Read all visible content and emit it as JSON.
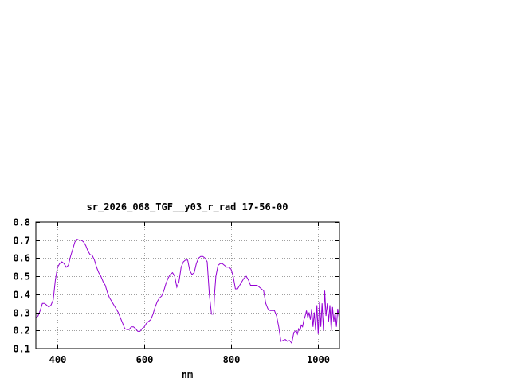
{
  "chart_data": {
    "type": "line",
    "title": "sr_2026_068_TGF__y03_r_rad 17-56-00",
    "xlabel": "nm",
    "ylabel": "",
    "xlim": [
      350,
      1050
    ],
    "ylim": [
      0.1,
      0.8
    ],
    "xticks": [
      400,
      600,
      800,
      1000
    ],
    "yticks": [
      0.1,
      0.2,
      0.3,
      0.4,
      0.5,
      0.6,
      0.7,
      0.8
    ],
    "grid": true,
    "series_color": "#9400d3",
    "x": [
      350,
      355,
      360,
      365,
      370,
      375,
      380,
      385,
      390,
      395,
      400,
      405,
      410,
      415,
      420,
      425,
      430,
      435,
      440,
      445,
      450,
      455,
      460,
      465,
      470,
      475,
      480,
      485,
      490,
      495,
      500,
      505,
      510,
      515,
      520,
      525,
      530,
      535,
      540,
      545,
      550,
      555,
      560,
      565,
      570,
      575,
      580,
      585,
      590,
      595,
      600,
      605,
      610,
      615,
      620,
      625,
      630,
      635,
      640,
      645,
      650,
      655,
      660,
      665,
      670,
      675,
      680,
      685,
      690,
      695,
      700,
      705,
      710,
      715,
      720,
      725,
      730,
      735,
      740,
      745,
      750,
      755,
      760,
      762,
      765,
      770,
      775,
      780,
      785,
      790,
      795,
      800,
      805,
      810,
      815,
      820,
      825,
      830,
      835,
      840,
      845,
      850,
      855,
      860,
      865,
      870,
      875,
      880,
      885,
      890,
      895,
      900,
      905,
      910,
      915,
      920,
      925,
      930,
      935,
      940,
      945,
      950,
      953,
      956,
      959,
      962,
      965,
      968,
      971,
      974,
      977,
      980,
      983,
      986,
      989,
      992,
      995,
      998,
      1001,
      1004,
      1007,
      1010,
      1013,
      1016,
      1019,
      1022,
      1025,
      1028,
      1031,
      1034,
      1037,
      1040,
      1043,
      1046,
      1050
    ],
    "y": [
      0.27,
      0.28,
      0.31,
      0.35,
      0.35,
      0.34,
      0.33,
      0.34,
      0.37,
      0.48,
      0.55,
      0.57,
      0.58,
      0.57,
      0.55,
      0.56,
      0.61,
      0.65,
      0.69,
      0.705,
      0.7,
      0.7,
      0.69,
      0.67,
      0.64,
      0.62,
      0.615,
      0.59,
      0.55,
      0.52,
      0.5,
      0.47,
      0.45,
      0.41,
      0.38,
      0.36,
      0.34,
      0.32,
      0.3,
      0.27,
      0.24,
      0.21,
      0.205,
      0.205,
      0.22,
      0.22,
      0.21,
      0.195,
      0.195,
      0.21,
      0.22,
      0.24,
      0.25,
      0.26,
      0.29,
      0.33,
      0.36,
      0.38,
      0.39,
      0.42,
      0.46,
      0.49,
      0.51,
      0.52,
      0.5,
      0.44,
      0.47,
      0.55,
      0.58,
      0.59,
      0.59,
      0.53,
      0.51,
      0.52,
      0.57,
      0.6,
      0.61,
      0.61,
      0.6,
      0.58,
      0.4,
      0.29,
      0.29,
      0.4,
      0.5,
      0.56,
      0.57,
      0.57,
      0.56,
      0.55,
      0.55,
      0.54,
      0.5,
      0.43,
      0.43,
      0.45,
      0.47,
      0.49,
      0.5,
      0.48,
      0.45,
      0.45,
      0.45,
      0.45,
      0.44,
      0.43,
      0.42,
      0.35,
      0.32,
      0.31,
      0.31,
      0.31,
      0.28,
      0.22,
      0.14,
      0.145,
      0.15,
      0.14,
      0.145,
      0.13,
      0.19,
      0.2,
      0.18,
      0.21,
      0.2,
      0.23,
      0.22,
      0.26,
      0.28,
      0.31,
      0.27,
      0.3,
      0.26,
      0.32,
      0.22,
      0.3,
      0.2,
      0.34,
      0.18,
      0.36,
      0.22,
      0.35,
      0.2,
      0.42,
      0.28,
      0.35,
      0.25,
      0.34,
      0.2,
      0.33,
      0.25,
      0.3,
      0.22,
      0.32,
      0.26
    ]
  }
}
